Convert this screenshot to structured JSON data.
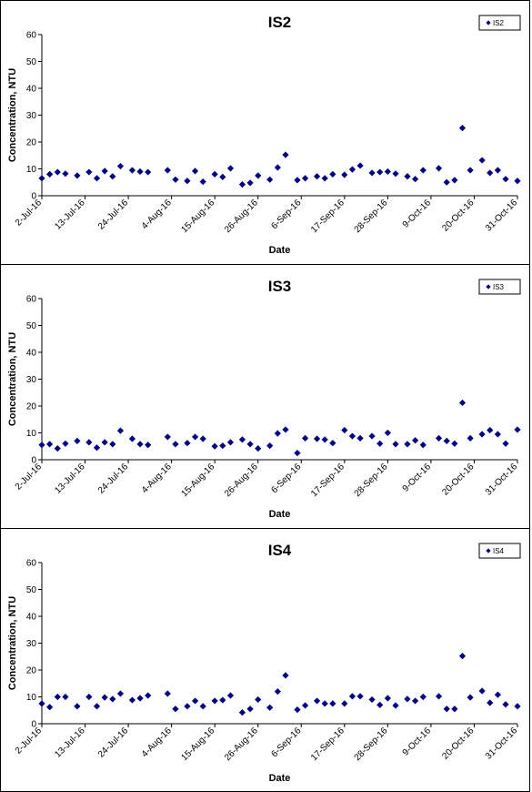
{
  "chart_data": [
    {
      "type": "scatter",
      "title": "IS2",
      "xlabel": "Date",
      "ylabel": "Concentration, NTU",
      "xlim": [
        "2016-07-02",
        "2016-10-31"
      ],
      "ylim": [
        0,
        60
      ],
      "yticks": [
        "0",
        "10",
        "20",
        "30",
        "40",
        "50",
        "60"
      ],
      "xticks": [
        "2-Jul-16",
        "13-Jul-16",
        "24-Jul-16",
        "4-Aug-16",
        "15-Aug-16",
        "26-Aug-16",
        "6-Sep-16",
        "17-Sep-16",
        "28-Sep-16",
        "9-Oct-16",
        "20-Oct-16",
        "31-Oct-16"
      ],
      "legend": "top-right",
      "grid": false,
      "series": [
        {
          "name": "IS2",
          "color": "#000080",
          "x": [
            "2016-07-02",
            "2016-07-04",
            "2016-07-06",
            "2016-07-08",
            "2016-07-11",
            "2016-07-14",
            "2016-07-16",
            "2016-07-18",
            "2016-07-20",
            "2016-07-22",
            "2016-07-25",
            "2016-07-27",
            "2016-07-29",
            "2016-08-03",
            "2016-08-05",
            "2016-08-08",
            "2016-08-10",
            "2016-08-12",
            "2016-08-15",
            "2016-08-17",
            "2016-08-19",
            "2016-08-22",
            "2016-08-24",
            "2016-08-26",
            "2016-08-29",
            "2016-08-31",
            "2016-09-02",
            "2016-09-05",
            "2016-09-07",
            "2016-09-10",
            "2016-09-12",
            "2016-09-14",
            "2016-09-17",
            "2016-09-19",
            "2016-09-21",
            "2016-09-24",
            "2016-09-26",
            "2016-09-28",
            "2016-09-30",
            "2016-10-03",
            "2016-10-05",
            "2016-10-07",
            "2016-10-11",
            "2016-10-13",
            "2016-10-15",
            "2016-10-17",
            "2016-10-19",
            "2016-10-22",
            "2016-10-24",
            "2016-10-26",
            "2016-10-28",
            "2016-10-31"
          ],
          "y": [
            6.5,
            8.0,
            8.8,
            8.2,
            7.5,
            8.8,
            6.5,
            9.2,
            7.2,
            11.0,
            9.5,
            9.0,
            8.8,
            9.5,
            6.0,
            5.5,
            9.2,
            5.2,
            8.0,
            7.0,
            10.2,
            4.2,
            4.8,
            7.5,
            6.0,
            10.5,
            15.2,
            5.8,
            6.5,
            7.2,
            6.5,
            8.0,
            7.8,
            9.8,
            11.2,
            8.5,
            8.8,
            9.0,
            8.2,
            7.2,
            6.2,
            9.5,
            10.2,
            5.0,
            5.8,
            25.2,
            9.5,
            13.2,
            8.5,
            9.5,
            6.2,
            5.5
          ]
        }
      ]
    },
    {
      "type": "scatter",
      "title": "IS3",
      "xlabel": "Date",
      "ylabel": "Concentration, NTU",
      "xlim": [
        "2016-07-02",
        "2016-10-31"
      ],
      "ylim": [
        0,
        60
      ],
      "yticks": [
        "0",
        "10",
        "20",
        "30",
        "40",
        "50",
        "60"
      ],
      "xticks": [
        "2-Jul-16",
        "13-Jul-16",
        "24-Jul-16",
        "4-Aug-16",
        "15-Aug-16",
        "26-Aug-16",
        "6-Sep-16",
        "17-Sep-16",
        "28-Sep-16",
        "9-Oct-16",
        "20-Oct-16",
        "31-Oct-16"
      ],
      "legend": "top-right",
      "grid": false,
      "series": [
        {
          "name": "IS3",
          "color": "#000080",
          "x": [
            "2016-07-02",
            "2016-07-04",
            "2016-07-06",
            "2016-07-08",
            "2016-07-11",
            "2016-07-14",
            "2016-07-16",
            "2016-07-18",
            "2016-07-20",
            "2016-07-22",
            "2016-07-25",
            "2016-07-27",
            "2016-07-29",
            "2016-08-03",
            "2016-08-05",
            "2016-08-08",
            "2016-08-10",
            "2016-08-12",
            "2016-08-15",
            "2016-08-17",
            "2016-08-19",
            "2016-08-22",
            "2016-08-24",
            "2016-08-26",
            "2016-08-29",
            "2016-08-31",
            "2016-09-02",
            "2016-09-05",
            "2016-09-07",
            "2016-09-10",
            "2016-09-12",
            "2016-09-14",
            "2016-09-17",
            "2016-09-19",
            "2016-09-21",
            "2016-09-24",
            "2016-09-26",
            "2016-09-28",
            "2016-09-30",
            "2016-10-03",
            "2016-10-05",
            "2016-10-07",
            "2016-10-11",
            "2016-10-13",
            "2016-10-15",
            "2016-10-17",
            "2016-10-19",
            "2016-10-22",
            "2016-10-24",
            "2016-10-26",
            "2016-10-28",
            "2016-10-31"
          ],
          "y": [
            5.5,
            5.8,
            4.2,
            6.0,
            7.0,
            6.5,
            4.5,
            6.5,
            5.8,
            10.8,
            7.8,
            5.8,
            5.5,
            8.5,
            5.8,
            6.2,
            8.5,
            7.8,
            5.0,
            5.2,
            6.5,
            7.5,
            5.8,
            4.2,
            5.2,
            9.8,
            11.2,
            2.5,
            8.0,
            7.8,
            7.5,
            6.2,
            11.0,
            8.8,
            8.0,
            8.8,
            6.0,
            10.0,
            5.8,
            5.8,
            7.2,
            5.5,
            8.0,
            7.0,
            6.0,
            21.2,
            8.0,
            9.5,
            11.0,
            9.5,
            6.0,
            11.2
          ]
        }
      ]
    },
    {
      "type": "scatter",
      "title": "IS4",
      "xlabel": "Date",
      "ylabel": "Concentration, NTU",
      "xlim": [
        "2016-07-02",
        "2016-10-31"
      ],
      "ylim": [
        0,
        60
      ],
      "yticks": [
        "0",
        "10",
        "20",
        "30",
        "40",
        "50",
        "60"
      ],
      "xticks": [
        "2-Jul-16",
        "13-Jul-16",
        "24-Jul-16",
        "4-Aug-16",
        "15-Aug-16",
        "26-Aug-16",
        "6-Sep-16",
        "17-Sep-16",
        "28-Sep-16",
        "9-Oct-16",
        "20-Oct-16",
        "31-Oct-16"
      ],
      "legend": "top-right",
      "grid": false,
      "series": [
        {
          "name": "IS4",
          "color": "#000080",
          "x": [
            "2016-07-02",
            "2016-07-04",
            "2016-07-06",
            "2016-07-08",
            "2016-07-11",
            "2016-07-14",
            "2016-07-16",
            "2016-07-18",
            "2016-07-20",
            "2016-07-22",
            "2016-07-25",
            "2016-07-27",
            "2016-07-29",
            "2016-08-03",
            "2016-08-05",
            "2016-08-08",
            "2016-08-10",
            "2016-08-12",
            "2016-08-15",
            "2016-08-17",
            "2016-08-19",
            "2016-08-22",
            "2016-08-24",
            "2016-08-26",
            "2016-08-29",
            "2016-08-31",
            "2016-09-02",
            "2016-09-05",
            "2016-09-07",
            "2016-09-10",
            "2016-09-12",
            "2016-09-14",
            "2016-09-17",
            "2016-09-19",
            "2016-09-21",
            "2016-09-24",
            "2016-09-26",
            "2016-09-28",
            "2016-09-30",
            "2016-10-03",
            "2016-10-05",
            "2016-10-07",
            "2016-10-11",
            "2016-10-13",
            "2016-10-15",
            "2016-10-17",
            "2016-10-19",
            "2016-10-22",
            "2016-10-24",
            "2016-10-26",
            "2016-10-28",
            "2016-10-31"
          ],
          "y": [
            7.5,
            6.2,
            10.0,
            10.0,
            6.5,
            10.0,
            6.5,
            9.8,
            9.2,
            11.2,
            8.8,
            9.5,
            10.5,
            11.2,
            5.5,
            6.5,
            8.5,
            6.5,
            8.5,
            8.8,
            10.5,
            4.2,
            5.5,
            9.0,
            6.0,
            12.0,
            18.0,
            5.2,
            6.8,
            8.5,
            7.5,
            7.5,
            7.5,
            10.2,
            10.2,
            9.0,
            7.0,
            9.5,
            6.8,
            9.2,
            8.5,
            10.0,
            10.2,
            5.5,
            5.5,
            25.2,
            9.8,
            12.2,
            7.8,
            10.8,
            7.2,
            6.5
          ]
        }
      ]
    }
  ]
}
